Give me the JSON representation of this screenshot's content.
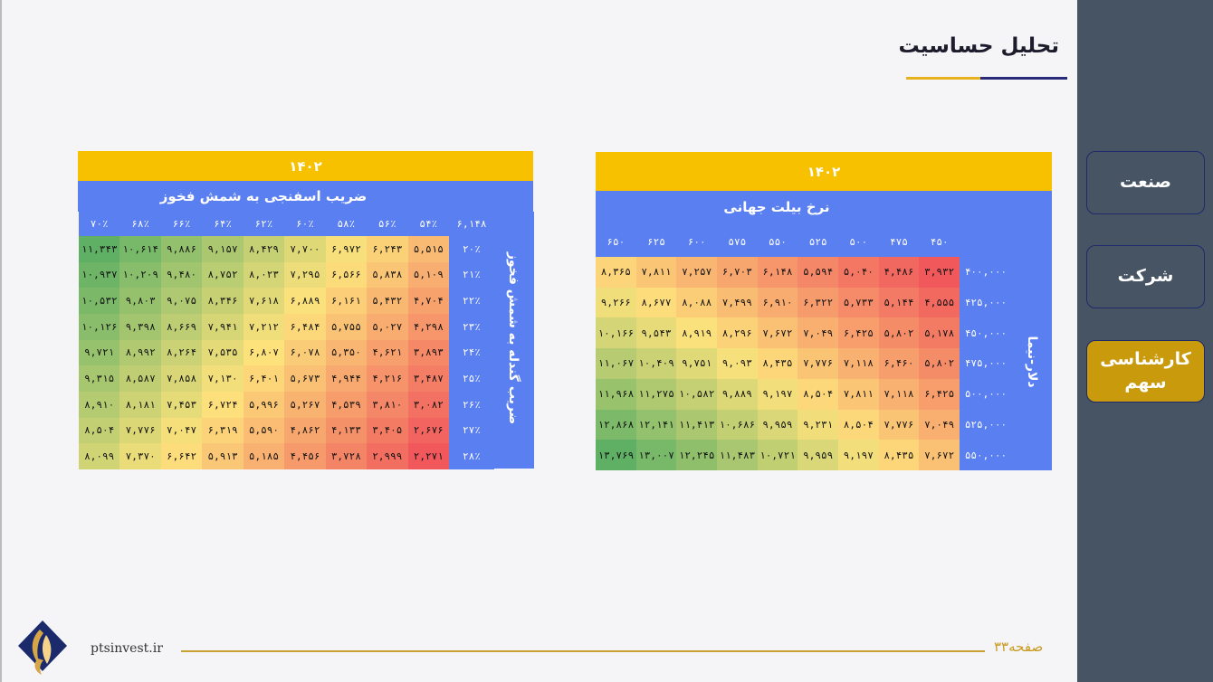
{
  "header": {
    "title": "تحلیل حساسیت"
  },
  "nav": {
    "items": [
      {
        "label": "صنعت"
      },
      {
        "label": "شرکت"
      },
      {
        "label": "کارشناسی سهم"
      }
    ]
  },
  "footer": {
    "site": "ptsinvest.ir",
    "page": "صفحه۳۳"
  },
  "table_left": {
    "year": "۱۴۰۲",
    "col_title": "ضریب اسفنجی به شمش فخوز",
    "row_title": "ضریب گندله به شمش فخوز",
    "corner": "۶,۱۴۸",
    "cols": [
      "۷۰٪",
      "۶۸٪",
      "۶۶٪",
      "۶۴٪",
      "۶۲٪",
      "۶۰٪",
      "۵۸٪",
      "۵۶٪",
      "۵۴٪"
    ],
    "rows": [
      {
        "label": "۲۰٪",
        "values": [
          "۱۱,۳۴۳",
          "۱۰,۶۱۴",
          "۹,۸۸۶",
          "۹,۱۵۷",
          "۸,۴۲۹",
          "۷,۷۰۰",
          "۶,۹۷۲",
          "۶,۲۴۳",
          "۵,۵۱۵"
        ]
      },
      {
        "label": "۲۱٪",
        "values": [
          "۱۰,۹۳۷",
          "۱۰,۲۰۹",
          "۹,۴۸۰",
          "۸,۷۵۲",
          "۸,۰۲۳",
          "۷,۲۹۵",
          "۶,۵۶۶",
          "۵,۸۳۸",
          "۵,۱۰۹"
        ]
      },
      {
        "label": "۲۲٪",
        "values": [
          "۱۰,۵۳۲",
          "۹,۸۰۳",
          "۹,۰۷۵",
          "۸,۳۴۶",
          "۷,۶۱۸",
          "۶,۸۸۹",
          "۶,۱۶۱",
          "۵,۴۳۲",
          "۴,۷۰۴"
        ]
      },
      {
        "label": "۲۳٪",
        "values": [
          "۱۰,۱۲۶",
          "۹,۳۹۸",
          "۸,۶۶۹",
          "۷,۹۴۱",
          "۷,۲۱۲",
          "۶,۴۸۴",
          "۵,۷۵۵",
          "۵,۰۲۷",
          "۴,۲۹۸"
        ]
      },
      {
        "label": "۲۴٪",
        "values": [
          "۹,۷۲۱",
          "۸,۹۹۲",
          "۸,۲۶۴",
          "۷,۵۳۵",
          "۶,۸۰۷",
          "۶,۰۷۸",
          "۵,۳۵۰",
          "۴,۶۲۱",
          "۳,۸۹۳"
        ]
      },
      {
        "label": "۲۵٪",
        "values": [
          "۹,۳۱۵",
          "۸,۵۸۷",
          "۷,۸۵۸",
          "۷,۱۳۰",
          "۶,۴۰۱",
          "۵,۶۷۳",
          "۴,۹۴۴",
          "۴,۲۱۶",
          "۳,۴۸۷"
        ]
      },
      {
        "label": "۲۶٪",
        "values": [
          "۸,۹۱۰",
          "۸,۱۸۱",
          "۷,۴۵۳",
          "۶,۷۲۴",
          "۵,۹۹۶",
          "۵,۲۶۷",
          "۴,۵۳۹",
          "۳,۸۱۰",
          "۳,۰۸۲"
        ]
      },
      {
        "label": "۲۷٪",
        "values": [
          "۸,۵۰۴",
          "۷,۷۷۶",
          "۷,۰۴۷",
          "۶,۳۱۹",
          "۵,۵۹۰",
          "۴,۸۶۲",
          "۴,۱۳۳",
          "۳,۴۰۵",
          "۲,۶۷۶"
        ]
      },
      {
        "label": "۲۸٪",
        "values": [
          "۸,۰۹۹",
          "۷,۳۷۰",
          "۶,۶۴۲",
          "۵,۹۱۳",
          "۵,۱۸۵",
          "۴,۴۵۶",
          "۳,۷۲۸",
          "۲,۹۹۹",
          "۲,۲۷۱"
        ]
      }
    ]
  },
  "table_right": {
    "year": "۱۴۰۲",
    "col_title": "نرخ بیلت جهانی",
    "row_title": "دلار-نیما",
    "cols": [
      "۶۵۰",
      "۶۲۵",
      "۶۰۰",
      "۵۷۵",
      "۵۵۰",
      "۵۲۵",
      "۵۰۰",
      "۴۷۵",
      "۴۵۰"
    ],
    "rows": [
      {
        "label": "۴۰۰,۰۰۰",
        "values": [
          "۸,۳۶۵",
          "۷,۸۱۱",
          "۷,۲۵۷",
          "۶,۷۰۳",
          "۶,۱۴۸",
          "۵,۵۹۴",
          "۵,۰۴۰",
          "۴,۴۸۶",
          "۳,۹۳۲"
        ]
      },
      {
        "label": "۴۲۵,۰۰۰",
        "values": [
          "۹,۲۶۶",
          "۸,۶۷۷",
          "۸,۰۸۸",
          "۷,۴۹۹",
          "۶,۹۱۰",
          "۶,۳۲۲",
          "۵,۷۳۳",
          "۵,۱۴۴",
          "۴,۵۵۵"
        ]
      },
      {
        "label": "۴۵۰,۰۰۰",
        "values": [
          "۱۰,۱۶۶",
          "۹,۵۴۳",
          "۸,۹۱۹",
          "۸,۲۹۶",
          "۷,۶۷۲",
          "۷,۰۴۹",
          "۶,۴۲۵",
          "۵,۸۰۲",
          "۵,۱۷۸"
        ]
      },
      {
        "label": "۴۷۵,۰۰۰",
        "values": [
          "۱۱,۰۶۷",
          "۱۰,۴۰۹",
          "۹,۷۵۱",
          "۹,۰۹۳",
          "۸,۴۳۵",
          "۷,۷۷۶",
          "۷,۱۱۸",
          "۶,۴۶۰",
          "۵,۸۰۲"
        ]
      },
      {
        "label": "۵۰۰,۰۰۰",
        "values": [
          "۱۱,۹۶۸",
          "۱۱,۲۷۵",
          "۱۰,۵۸۲",
          "۹,۸۸۹",
          "۹,۱۹۷",
          "۸,۵۰۴",
          "۷,۸۱۱",
          "۷,۱۱۸",
          "۶,۴۲۵"
        ]
      },
      {
        "label": "۵۲۵,۰۰۰",
        "values": [
          "۱۲,۸۶۸",
          "۱۲,۱۴۱",
          "۱۱,۴۱۳",
          "۱۰,۶۸۶",
          "۹,۹۵۹",
          "۹,۲۳۱",
          "۸,۵۰۴",
          "۷,۷۷۶",
          "۷,۰۴۹"
        ]
      },
      {
        "label": "۵۵۰,۰۰۰",
        "values": [
          "۱۳,۷۶۹",
          "۱۳,۰۰۷",
          "۱۲,۲۴۵",
          "۱۱,۴۸۳",
          "۱۰,۷۲۱",
          "۹,۹۵۹",
          "۹,۱۹۷",
          "۸,۴۳۵",
          "۷,۶۷۲"
        ]
      }
    ]
  },
  "colors": {
    "header_blue": "#5a7ff0",
    "banner_gold": "#f7c100",
    "panel_bg": "#465463",
    "active_nav": "#c89a0c",
    "heat_low": "#f0585c",
    "heat_mid": "#fde27c",
    "heat_high": "#5fb065"
  }
}
